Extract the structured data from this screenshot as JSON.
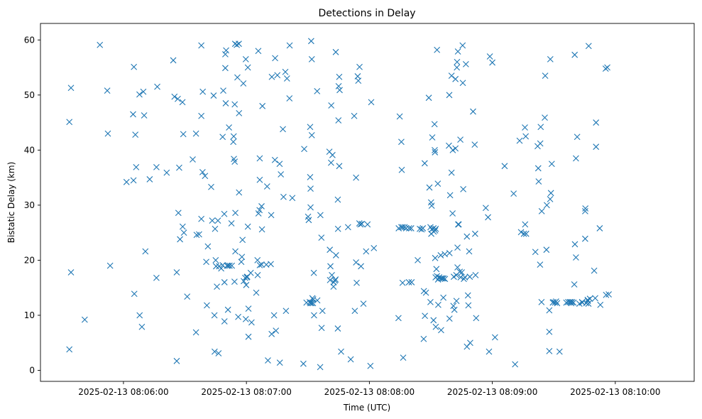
{
  "chart_data": {
    "type": "scatter",
    "title": "Detections in Delay",
    "xlabel": "Time (UTC)",
    "ylabel": "Bistatic Delay (km)",
    "marker": "x",
    "color": "#1f77b4",
    "x_unit": "seconds after 2025-02-13 08:05:00 UTC",
    "xlim": [
      19.5,
      338.5
    ],
    "ylim": [
      -2.0,
      63.0
    ],
    "xticks": [
      {
        "value": 60,
        "label": "2025-02-13 08:06:00"
      },
      {
        "value": 120,
        "label": "2025-02-13 08:07:00"
      },
      {
        "value": 180,
        "label": "2025-02-13 08:08:00"
      },
      {
        "value": 240,
        "label": "2025-02-13 08:09:00"
      },
      {
        "value": 300,
        "label": "2025-02-13 08:10:00"
      }
    ],
    "yticks": [
      {
        "value": 0,
        "label": "0"
      },
      {
        "value": 10,
        "label": "10"
      },
      {
        "value": 20,
        "label": "20"
      },
      {
        "value": 30,
        "label": "30"
      },
      {
        "value": 40,
        "label": "40"
      },
      {
        "value": 50,
        "label": "50"
      },
      {
        "value": 60,
        "label": "60"
      }
    ],
    "points": [
      [
        33.6,
        45.1
      ],
      [
        34.4,
        51.3
      ],
      [
        33.6,
        3.8
      ],
      [
        34.4,
        17.8
      ],
      [
        41.1,
        9.2
      ],
      [
        48.5,
        59.1
      ],
      [
        52.1,
        50.8
      ],
      [
        52.4,
        43.0
      ],
      [
        53.5,
        19.0
      ],
      [
        61.5,
        34.2
      ],
      [
        64.7,
        46.5
      ],
      [
        65.1,
        55.1
      ],
      [
        64.9,
        34.5
      ],
      [
        65.3,
        13.9
      ],
      [
        65.8,
        42.8
      ],
      [
        66.2,
        36.9
      ],
      [
        67.8,
        50.1
      ],
      [
        67.9,
        10.0
      ],
      [
        69.0,
        7.9
      ],
      [
        69.7,
        50.6
      ],
      [
        70.1,
        46.3
      ],
      [
        70.7,
        21.6
      ],
      [
        72.8,
        34.7
      ],
      [
        76.1,
        36.9
      ],
      [
        76.1,
        16.8
      ],
      [
        76.5,
        51.5
      ],
      [
        81.1,
        35.9
      ],
      [
        84.3,
        56.3
      ],
      [
        84.9,
        49.7
      ],
      [
        86.0,
        1.7
      ],
      [
        86.0,
        17.8
      ],
      [
        86.5,
        49.3
      ],
      [
        86.8,
        28.6
      ],
      [
        87.6,
        23.8
      ],
      [
        87.2,
        36.8
      ],
      [
        88.9,
        26.1
      ],
      [
        88.8,
        48.7
      ],
      [
        89.2,
        42.9
      ],
      [
        89.5,
        25.0
      ],
      [
        91.1,
        13.4
      ],
      [
        93.8,
        38.3
      ],
      [
        95.4,
        6.9
      ],
      [
        95.4,
        43.0
      ],
      [
        95.7,
        24.6
      ],
      [
        96.9,
        24.7
      ],
      [
        98.0,
        59.0
      ],
      [
        98.0,
        46.2
      ],
      [
        98.0,
        27.5
      ],
      [
        98.6,
        36.0
      ],
      [
        98.7,
        50.6
      ],
      [
        99.8,
        35.3
      ],
      [
        100.4,
        19.7
      ],
      [
        100.7,
        11.8
      ],
      [
        101.2,
        22.5
      ],
      [
        102.8,
        33.3
      ],
      [
        103.3,
        27.2
      ],
      [
        104.0,
        49.9
      ],
      [
        104.7,
        25.7
      ],
      [
        104.4,
        10.0
      ],
      [
        104.5,
        3.4
      ],
      [
        105.0,
        20.0
      ],
      [
        105.2,
        18.9
      ],
      [
        106.4,
        3.1
      ],
      [
        105.6,
        15.2
      ],
      [
        106.1,
        27.2
      ],
      [
        106.7,
        18.9
      ],
      [
        107.7,
        18.5
      ],
      [
        108.4,
        19.1
      ],
      [
        108.4,
        42.4
      ],
      [
        109.2,
        28.4
      ],
      [
        108.7,
        50.8
      ],
      [
        109.3,
        8.9
      ],
      [
        109.3,
        16.0
      ],
      [
        109.7,
        54.9
      ],
      [
        109.7,
        57.4
      ],
      [
        109.9,
        48.5
      ],
      [
        110.1,
        58.1
      ],
      [
        111.0,
        11.0
      ],
      [
        110.5,
        19.0
      ],
      [
        111.1,
        19.0
      ],
      [
        111.5,
        44.1
      ],
      [
        111.8,
        19.0
      ],
      [
        112.7,
        26.7
      ],
      [
        112.9,
        19.0
      ],
      [
        113.6,
        41.5
      ],
      [
        113.9,
        38.4
      ],
      [
        114.2,
        16.1
      ],
      [
        114.3,
        48.3
      ],
      [
        114.5,
        59.3
      ],
      [
        113.8,
        42.5
      ],
      [
        114.3,
        37.9
      ],
      [
        114.6,
        28.6
      ],
      [
        114.6,
        21.6
      ],
      [
        115.3,
        59.1
      ],
      [
        115.6,
        53.2
      ],
      [
        116.3,
        59.3
      ],
      [
        116.4,
        46.7
      ],
      [
        116.4,
        32.3
      ],
      [
        116.0,
        9.7
      ],
      [
        117.5,
        19.7
      ],
      [
        117.8,
        20.6
      ],
      [
        118.1,
        23.7
      ],
      [
        118.5,
        52.1
      ],
      [
        118.7,
        16.2
      ],
      [
        119.4,
        16.8
      ],
      [
        119.7,
        56.5
      ],
      [
        119.9,
        15.5
      ],
      [
        120.2,
        16.9
      ],
      [
        119.7,
        9.3
      ],
      [
        120.4,
        17.0
      ],
      [
        120.7,
        55.0
      ],
      [
        120.7,
        26.1
      ],
      [
        121.0,
        11.2
      ],
      [
        121.0,
        6.1
      ],
      [
        122.1,
        17.7
      ],
      [
        122.5,
        8.7
      ],
      [
        124.8,
        14.1
      ],
      [
        125.5,
        17.3
      ],
      [
        125.4,
        20.0
      ],
      [
        125.9,
        28.5
      ],
      [
        125.8,
        58.0
      ],
      [
        126.5,
        19.1
      ],
      [
        126.5,
        38.5
      ],
      [
        126.5,
        34.6
      ],
      [
        126.4,
        29.1
      ],
      [
        127.4,
        29.8
      ],
      [
        127.4,
        19.2
      ],
      [
        127.6,
        25.6
      ],
      [
        127.8,
        48.0
      ],
      [
        129.7,
        19.2
      ],
      [
        130.1,
        33.4
      ],
      [
        130.5,
        1.8
      ],
      [
        131.9,
        19.3
      ],
      [
        132.1,
        28.2
      ],
      [
        132.4,
        53.3
      ],
      [
        132.3,
        6.6
      ],
      [
        133.5,
        10.0
      ],
      [
        133.9,
        38.2
      ],
      [
        134.0,
        56.7
      ],
      [
        134.4,
        7.2
      ],
      [
        135.1,
        53.6
      ],
      [
        136.2,
        37.5
      ],
      [
        136.3,
        1.4
      ],
      [
        136.8,
        35.6
      ],
      [
        137.8,
        43.8
      ],
      [
        138.1,
        31.5
      ],
      [
        139.0,
        54.2
      ],
      [
        139.3,
        10.8
      ],
      [
        139.8,
        53.0
      ],
      [
        141.1,
        59.0
      ],
      [
        141.0,
        49.4
      ],
      [
        142.4,
        31.3
      ],
      [
        147.8,
        1.2
      ],
      [
        148.2,
        40.2
      ],
      [
        149.3,
        12.3
      ],
      [
        150.1,
        27.9
      ],
      [
        150.4,
        27.3
      ],
      [
        150.9,
        12.4
      ],
      [
        151.2,
        12.2
      ],
      [
        151.1,
        44.2
      ],
      [
        151.1,
        35.1
      ],
      [
        151.3,
        33.0
      ],
      [
        151.3,
        29.6
      ],
      [
        151.6,
        59.8
      ],
      [
        151.9,
        56.5
      ],
      [
        151.9,
        42.7
      ],
      [
        151.8,
        12.2
      ],
      [
        152.2,
        13.1
      ],
      [
        152.5,
        12.2
      ],
      [
        152.6,
        12.9
      ],
      [
        152.9,
        17.7
      ],
      [
        153.0,
        10.0
      ],
      [
        154.5,
        50.7
      ],
      [
        154.6,
        12.7
      ],
      [
        156.0,
        0.6
      ],
      [
        156.1,
        28.2
      ],
      [
        156.7,
        7.7
      ],
      [
        156.6,
        24.1
      ],
      [
        157.1,
        10.8
      ],
      [
        160.5,
        39.7
      ],
      [
        160.7,
        21.9
      ],
      [
        160.8,
        16.4
      ],
      [
        161.0,
        18.9
      ],
      [
        161.3,
        37.7
      ],
      [
        161.4,
        48.1
      ],
      [
        161.7,
        17.3
      ],
      [
        162.0,
        39.1
      ],
      [
        162.5,
        15.2
      ],
      [
        162.6,
        16.0
      ],
      [
        163.2,
        16.3
      ],
      [
        163.5,
        16.5
      ],
      [
        163.6,
        57.8
      ],
      [
        163.7,
        20.9
      ],
      [
        164.6,
        7.6
      ],
      [
        164.6,
        31.0
      ],
      [
        164.7,
        25.7
      ],
      [
        164.9,
        45.4
      ],
      [
        165.0,
        51.6
      ],
      [
        165.5,
        50.9
      ],
      [
        165.3,
        37.1
      ],
      [
        165.3,
        53.3
      ],
      [
        166.2,
        3.4
      ],
      [
        169.6,
        26.0
      ],
      [
        170.9,
        2.0
      ],
      [
        172.6,
        46.2
      ],
      [
        172.9,
        10.8
      ],
      [
        173.5,
        35.0
      ],
      [
        173.5,
        19.6
      ],
      [
        173.8,
        15.9
      ],
      [
        174.3,
        53.4
      ],
      [
        174.6,
        52.6
      ],
      [
        175.1,
        26.7
      ],
      [
        175.2,
        55.1
      ],
      [
        175.6,
        26.5
      ],
      [
        175.9,
        18.9
      ],
      [
        176.3,
        26.6
      ],
      [
        177.1,
        12.1
      ],
      [
        178.4,
        21.6
      ],
      [
        179.1,
        26.5
      ],
      [
        180.5,
        0.8
      ],
      [
        180.9,
        48.7
      ],
      [
        182.2,
        22.2
      ],
      [
        194.2,
        9.5
      ],
      [
        194.3,
        25.8
      ],
      [
        194.8,
        46.1
      ],
      [
        195.6,
        26.0
      ],
      [
        195.6,
        41.5
      ],
      [
        195.8,
        36.4
      ],
      [
        196.2,
        15.9
      ],
      [
        196.3,
        26.0
      ],
      [
        196.5,
        2.3
      ],
      [
        197.2,
        26.0
      ],
      [
        197.9,
        25.8
      ],
      [
        199.4,
        25.8
      ],
      [
        199.3,
        16.0
      ],
      [
        200.4,
        25.8
      ],
      [
        200.6,
        16.0
      ],
      [
        203.6,
        20.0
      ],
      [
        204.6,
        25.7
      ],
      [
        205.5,
        25.6
      ],
      [
        206.1,
        25.8
      ],
      [
        206.5,
        5.7
      ],
      [
        206.6,
        14.4
      ],
      [
        207.0,
        37.6
      ],
      [
        207.1,
        9.9
      ],
      [
        207.6,
        14.1
      ],
      [
        209.0,
        49.5
      ],
      [
        209.3,
        33.2
      ],
      [
        209.8,
        12.4
      ],
      [
        209.8,
        26.0
      ],
      [
        210.2,
        24.8
      ],
      [
        210.1,
        30.5
      ],
      [
        210.4,
        29.9
      ],
      [
        210.5,
        25.6
      ],
      [
        210.7,
        42.3
      ],
      [
        211.3,
        25.8
      ],
      [
        211.4,
        25.2
      ],
      [
        211.3,
        9.1
      ],
      [
        211.8,
        44.7
      ],
      [
        211.9,
        40.0
      ],
      [
        212.0,
        39.6
      ],
      [
        212.1,
        25.4
      ],
      [
        212.1,
        20.4
      ],
      [
        212.3,
        16.9
      ],
      [
        212.4,
        7.9
      ],
      [
        212.4,
        25.7
      ],
      [
        212.7,
        18.4
      ],
      [
        213.0,
        17.1
      ],
      [
        213.0,
        58.2
      ],
      [
        213.4,
        33.9
      ],
      [
        213.5,
        16.5
      ],
      [
        213.6,
        11.9
      ],
      [
        214.1,
        16.9
      ],
      [
        214.8,
        20.9
      ],
      [
        215.0,
        16.7
      ],
      [
        215.0,
        7.3
      ],
      [
        215.6,
        16.7
      ],
      [
        216.1,
        13.2
      ],
      [
        216.2,
        16.7
      ],
      [
        216.8,
        21.1
      ],
      [
        216.9,
        16.6
      ],
      [
        218.8,
        40.8
      ],
      [
        219.1,
        9.4
      ],
      [
        219.0,
        50.0
      ],
      [
        219.1,
        21.3
      ],
      [
        219.4,
        31.8
      ],
      [
        220.1,
        53.5
      ],
      [
        220.1,
        35.9
      ],
      [
        220.6,
        28.5
      ],
      [
        220.7,
        40.0
      ],
      [
        221.0,
        11.7
      ],
      [
        221.2,
        17.0
      ],
      [
        221.5,
        11.0
      ],
      [
        222.0,
        52.9
      ],
      [
        222.0,
        40.3
      ],
      [
        222.5,
        12.6
      ],
      [
        222.4,
        17.3
      ],
      [
        222.8,
        56.0
      ],
      [
        222.7,
        55.0
      ],
      [
        223.0,
        18.7
      ],
      [
        223.0,
        22.3
      ],
      [
        223.2,
        57.9
      ],
      [
        223.3,
        26.5
      ],
      [
        223.6,
        26.5
      ],
      [
        224.1,
        17.9
      ],
      [
        224.4,
        41.9
      ],
      [
        224.5,
        16.9
      ],
      [
        225.1,
        17.8
      ],
      [
        225.6,
        52.2
      ],
      [
        225.5,
        59.0
      ],
      [
        225.8,
        32.9
      ],
      [
        226.1,
        16.6
      ],
      [
        226.6,
        16.9
      ],
      [
        227.1,
        55.6
      ],
      [
        227.6,
        4.3
      ],
      [
        227.6,
        24.3
      ],
      [
        228.3,
        11.8
      ],
      [
        228.1,
        13.6
      ],
      [
        228.7,
        21.6
      ],
      [
        229.0,
        17.0
      ],
      [
        229.2,
        5.0
      ],
      [
        230.6,
        47.0
      ],
      [
        231.4,
        41.0
      ],
      [
        231.6,
        24.8
      ],
      [
        231.8,
        17.3
      ],
      [
        232.1,
        9.5
      ],
      [
        236.8,
        29.5
      ],
      [
        237.9,
        27.8
      ],
      [
        238.8,
        57.0
      ],
      [
        238.4,
        3.4
      ],
      [
        240.0,
        55.9
      ],
      [
        241.3,
        6.0
      ],
      [
        246.0,
        37.1
      ],
      [
        250.4,
        32.1
      ],
      [
        251.1,
        1.1
      ],
      [
        253.3,
        41.7
      ],
      [
        254.0,
        25.1
      ],
      [
        255.4,
        24.8
      ],
      [
        255.9,
        44.1
      ],
      [
        256.0,
        26.5
      ],
      [
        256.3,
        42.5
      ],
      [
        256.5,
        24.8
      ],
      [
        261.0,
        21.5
      ],
      [
        262.1,
        40.7
      ],
      [
        262.4,
        36.7
      ],
      [
        262.6,
        34.3
      ],
      [
        263.3,
        19.2
      ],
      [
        263.4,
        41.2
      ],
      [
        263.6,
        44.2
      ],
      [
        264.0,
        12.4
      ],
      [
        264.1,
        28.9
      ],
      [
        265.6,
        45.9
      ],
      [
        265.8,
        53.5
      ],
      [
        266.4,
        21.9
      ],
      [
        266.6,
        30.0
      ],
      [
        267.8,
        10.9
      ],
      [
        267.8,
        7.0
      ],
      [
        267.8,
        3.5
      ],
      [
        268.3,
        56.5
      ],
      [
        268.2,
        31.1
      ],
      [
        268.6,
        32.2
      ],
      [
        269.0,
        37.5
      ],
      [
        269.5,
        12.3
      ],
      [
        269.8,
        12.4
      ],
      [
        270.6,
        12.3
      ],
      [
        271.1,
        12.5
      ],
      [
        271.6,
        12.2
      ],
      [
        272.8,
        3.4
      ],
      [
        276.1,
        12.3
      ],
      [
        277.0,
        12.4
      ],
      [
        277.8,
        12.4
      ],
      [
        278.2,
        12.4
      ],
      [
        278.5,
        12.2
      ],
      [
        278.9,
        12.4
      ],
      [
        279.6,
        12.3
      ],
      [
        280.0,
        15.6
      ],
      [
        280.2,
        57.3
      ],
      [
        280.3,
        22.9
      ],
      [
        280.8,
        20.5
      ],
      [
        280.8,
        38.5
      ],
      [
        281.4,
        42.4
      ],
      [
        282.5,
        12.1
      ],
      [
        283.8,
        12.4
      ],
      [
        283.9,
        12.3
      ],
      [
        285.3,
        23.9
      ],
      [
        285.4,
        29.4
      ],
      [
        285.3,
        28.9
      ],
      [
        285.8,
        12.2
      ],
      [
        286.5,
        12.8
      ],
      [
        286.6,
        12.6
      ],
      [
        287.0,
        58.9
      ],
      [
        286.9,
        12.1
      ],
      [
        287.6,
        13.0
      ],
      [
        289.7,
        18.1
      ],
      [
        290.2,
        13.1
      ],
      [
        290.6,
        45.0
      ],
      [
        290.6,
        40.6
      ],
      [
        292.7,
        11.9
      ],
      [
        292.4,
        25.8
      ],
      [
        295.3,
        54.8
      ],
      [
        295.5,
        13.7
      ],
      [
        296.1,
        55.0
      ],
      [
        296.8,
        13.8
      ]
    ]
  }
}
